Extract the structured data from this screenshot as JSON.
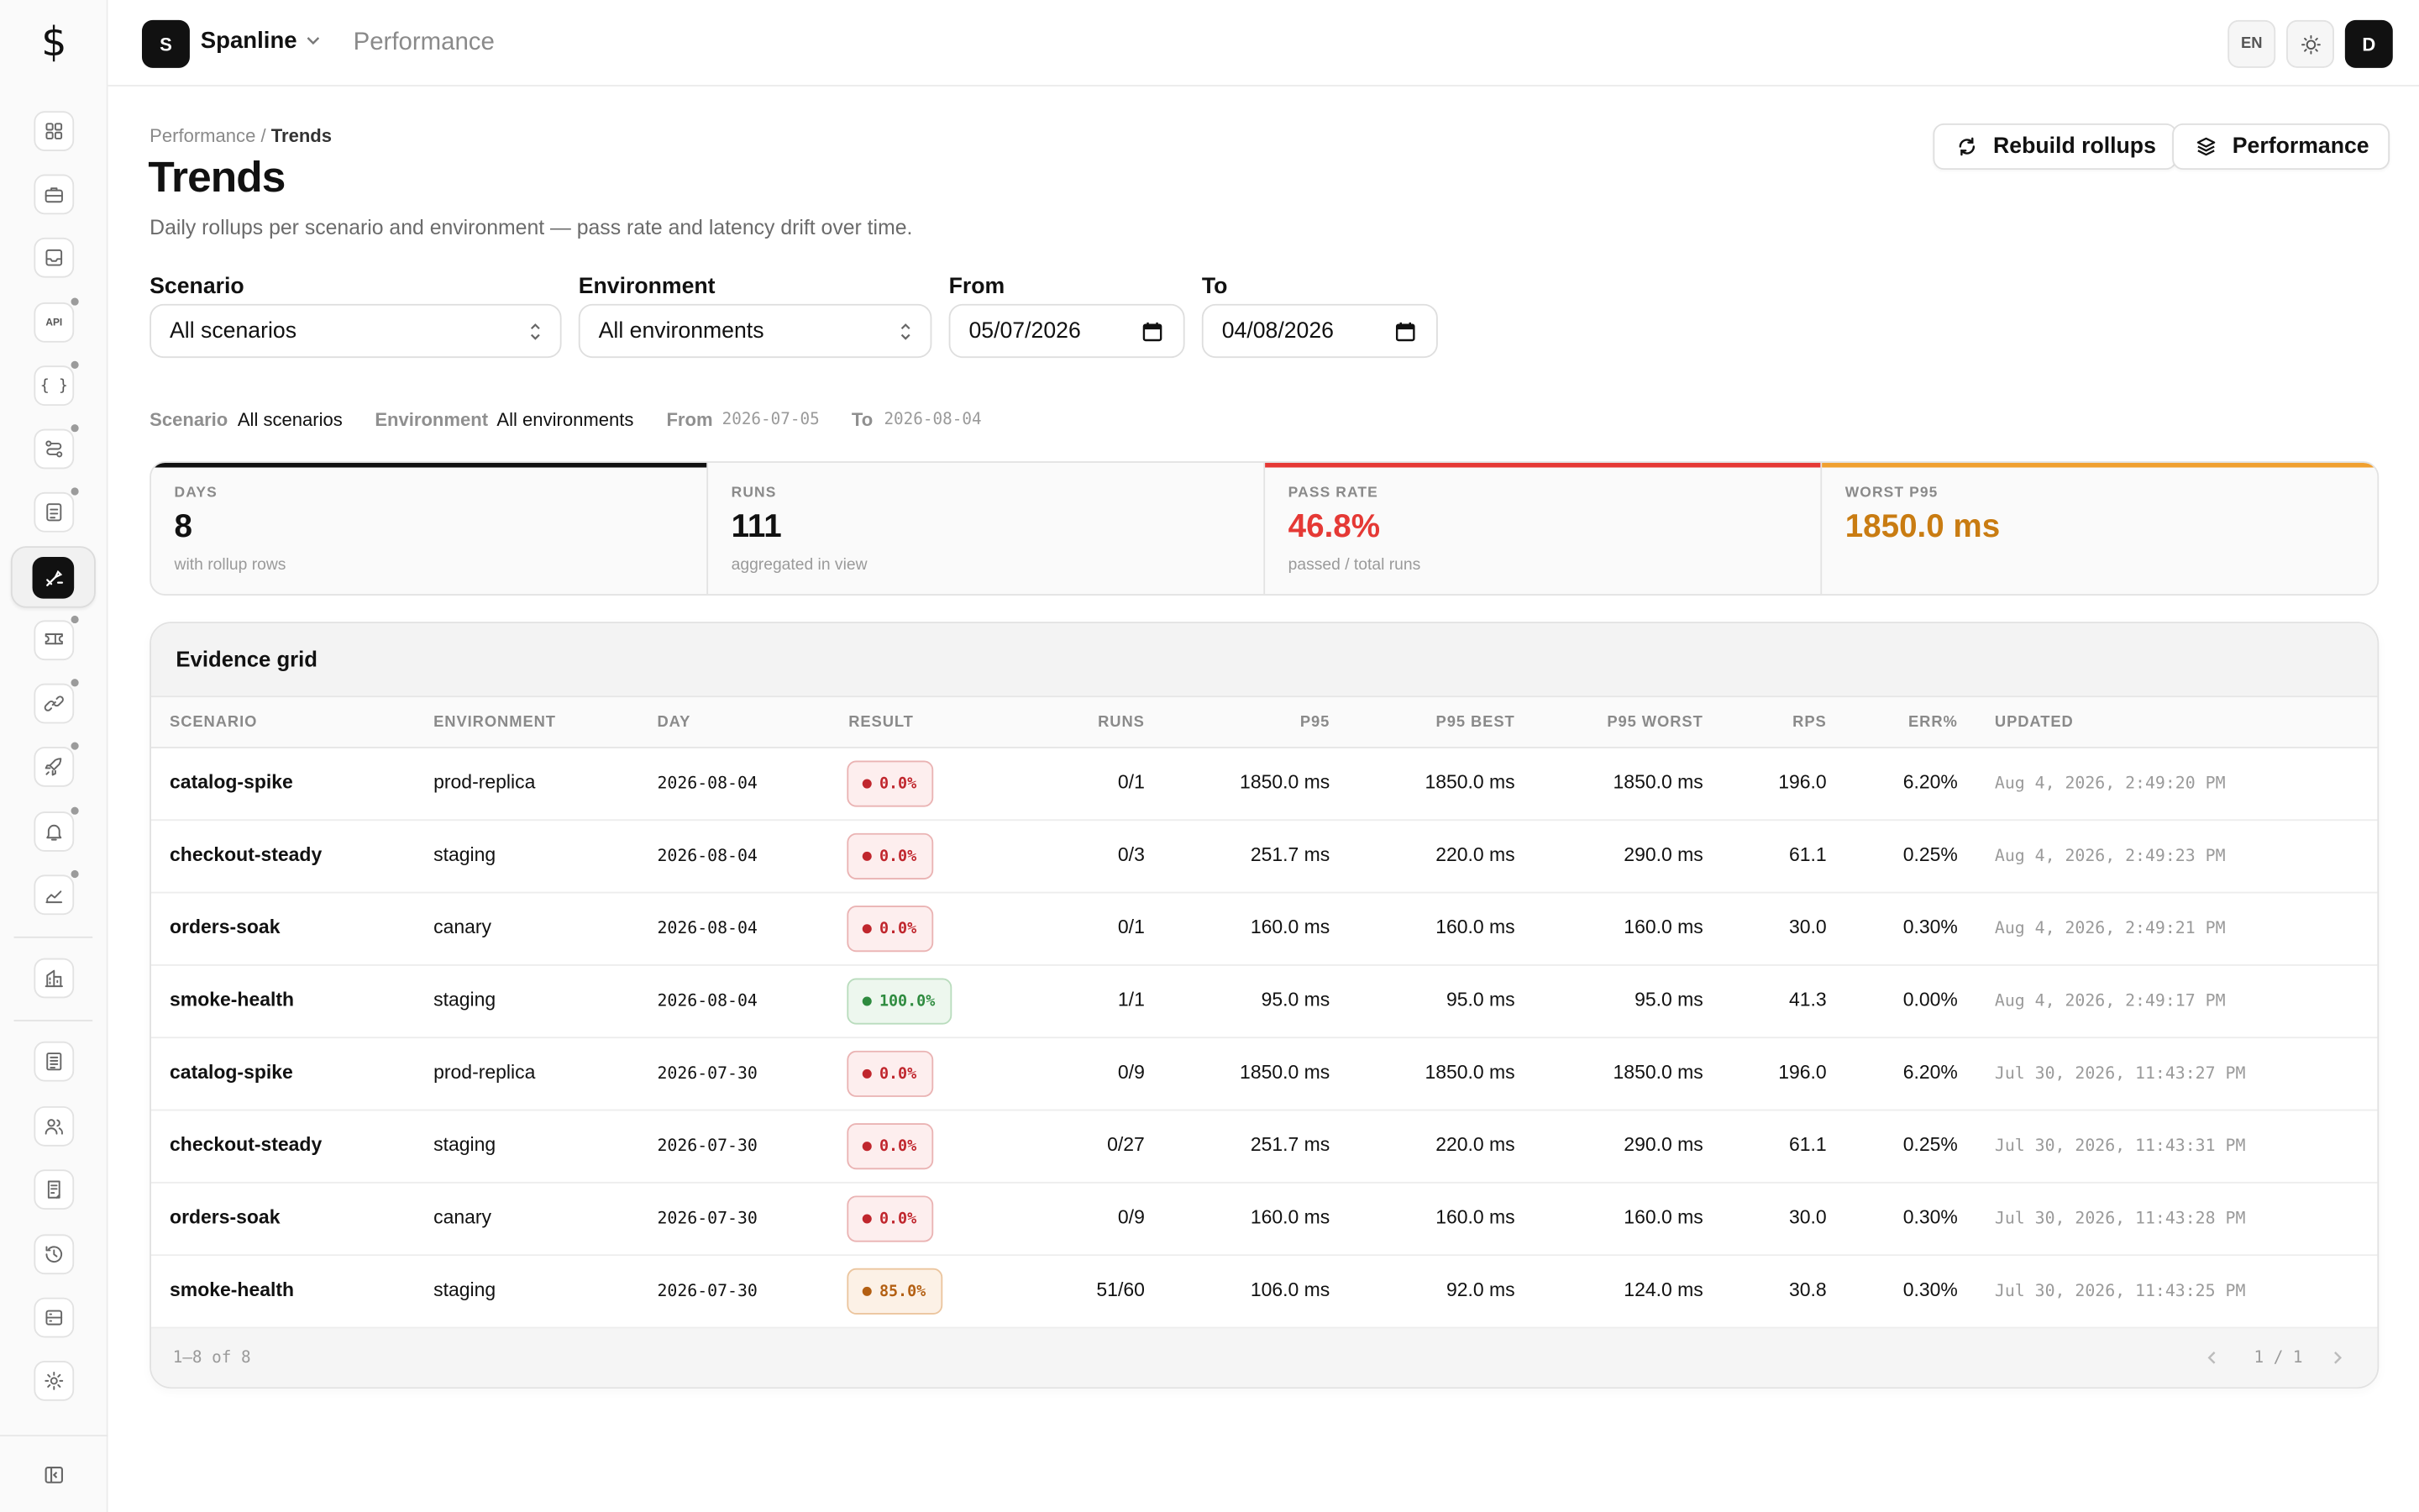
{
  "app": {
    "logo_glyph": "$",
    "workspace_initial": "S",
    "workspace_name": "Spanline",
    "section": "Performance"
  },
  "topbar": {
    "lang": "EN",
    "user_initial": "D"
  },
  "sidebar": {
    "icons": [
      "dashboard-icon",
      "briefcase-icon",
      "inbox-icon",
      "api-icon",
      "braces-icon",
      "route-icon",
      "checklist-icon",
      "performance-icon",
      "ticket-icon",
      "link-icon",
      "rocket-icon",
      "bell-icon",
      "chart-icon",
      "building-icon",
      "document-icon",
      "users-icon",
      "report-icon",
      "history-icon",
      "storage-icon",
      "settings-icon",
      "collapse-icon"
    ],
    "api_label": "API",
    "braces_label": "{ }"
  },
  "breadcrumb": {
    "parent": "Performance",
    "separator": " / ",
    "current": "Trends"
  },
  "header": {
    "title": "Trends",
    "subtitle": "Daily rollups per scenario and environment — pass rate and latency drift over time.",
    "rebuild_label": "Rebuild rollups",
    "performance_label": "Performance"
  },
  "filters": {
    "scenario_label": "Scenario",
    "scenario_value": "All scenarios",
    "environment_label": "Environment",
    "environment_value": "All environments",
    "from_label": "From",
    "from_value": "05/07/2026",
    "to_label": "To",
    "to_value": "04/08/2026"
  },
  "chips": {
    "scenario_key": "Scenario",
    "scenario_val": "All scenarios",
    "environment_key": "Environment",
    "environment_val": "All environments",
    "from_key": "From",
    "from_val": "2026-07-05",
    "to_key": "To",
    "to_val": "2026-08-04"
  },
  "stats": [
    {
      "label": "DAYS",
      "value": "8",
      "sub": "with rollup rows",
      "accent": "#111111",
      "value_color": "#111111"
    },
    {
      "label": "RUNS",
      "value": "111",
      "sub": "aggregated in view",
      "accent": "transparent",
      "value_color": "#111111"
    },
    {
      "label": "PASS RATE",
      "value": "46.8%",
      "sub": "passed / total runs",
      "accent": "#e53935",
      "value_color": "#e53935"
    },
    {
      "label": "WORST P95",
      "value": "1850.0 ms",
      "sub": "",
      "accent": "#f0a030",
      "value_color": "#c97c12"
    }
  ],
  "grid": {
    "title": "Evidence grid",
    "columns": [
      "SCENARIO",
      "ENVIRONMENT",
      "DAY",
      "RESULT",
      "RUNS",
      "P95",
      "P95 BEST",
      "P95 WORST",
      "RPS",
      "ERR%",
      "UPDATED"
    ],
    "rows": [
      {
        "scenario": "catalog-spike",
        "environment": "prod-replica",
        "day": "2026-08-04",
        "result": "0.0%",
        "result_tone": "red",
        "runs": "0/1",
        "p95": "1850.0 ms",
        "p95_best": "1850.0 ms",
        "p95_worst": "1850.0 ms",
        "rps": "196.0",
        "err": "6.20%",
        "updated": "Aug 4, 2026, 2:49:20 PM"
      },
      {
        "scenario": "checkout-steady",
        "environment": "staging",
        "day": "2026-08-04",
        "result": "0.0%",
        "result_tone": "red",
        "runs": "0/3",
        "p95": "251.7 ms",
        "p95_best": "220.0 ms",
        "p95_worst": "290.0 ms",
        "rps": "61.1",
        "err": "0.25%",
        "updated": "Aug 4, 2026, 2:49:23 PM"
      },
      {
        "scenario": "orders-soak",
        "environment": "canary",
        "day": "2026-08-04",
        "result": "0.0%",
        "result_tone": "red",
        "runs": "0/1",
        "p95": "160.0 ms",
        "p95_best": "160.0 ms",
        "p95_worst": "160.0 ms",
        "rps": "30.0",
        "err": "0.30%",
        "updated": "Aug 4, 2026, 2:49:21 PM"
      },
      {
        "scenario": "smoke-health",
        "environment": "staging",
        "day": "2026-08-04",
        "result": "100.0%",
        "result_tone": "green",
        "runs": "1/1",
        "p95": "95.0 ms",
        "p95_best": "95.0 ms",
        "p95_worst": "95.0 ms",
        "rps": "41.3",
        "err": "0.00%",
        "updated": "Aug 4, 2026, 2:49:17 PM"
      },
      {
        "scenario": "catalog-spike",
        "environment": "prod-replica",
        "day": "2026-07-30",
        "result": "0.0%",
        "result_tone": "red",
        "runs": "0/9",
        "p95": "1850.0 ms",
        "p95_best": "1850.0 ms",
        "p95_worst": "1850.0 ms",
        "rps": "196.0",
        "err": "6.20%",
        "updated": "Jul 30, 2026, 11:43:27 PM"
      },
      {
        "scenario": "checkout-steady",
        "environment": "staging",
        "day": "2026-07-30",
        "result": "0.0%",
        "result_tone": "red",
        "runs": "0/27",
        "p95": "251.7 ms",
        "p95_best": "220.0 ms",
        "p95_worst": "290.0 ms",
        "rps": "61.1",
        "err": "0.25%",
        "updated": "Jul 30, 2026, 11:43:31 PM"
      },
      {
        "scenario": "orders-soak",
        "environment": "canary",
        "day": "2026-07-30",
        "result": "0.0%",
        "result_tone": "red",
        "runs": "0/9",
        "p95": "160.0 ms",
        "p95_best": "160.0 ms",
        "p95_worst": "160.0 ms",
        "rps": "30.0",
        "err": "0.30%",
        "updated": "Jul 30, 2026, 11:43:28 PM"
      },
      {
        "scenario": "smoke-health",
        "environment": "staging",
        "day": "2026-07-30",
        "result": "85.0%",
        "result_tone": "amber",
        "runs": "51/60",
        "p95": "106.0 ms",
        "p95_best": "92.0 ms",
        "p95_worst": "124.0 ms",
        "rps": "30.8",
        "err": "0.30%",
        "updated": "Jul 30, 2026, 11:43:25 PM"
      }
    ],
    "footer_count": "1–8 of 8",
    "footer_page": "1 / 1"
  }
}
